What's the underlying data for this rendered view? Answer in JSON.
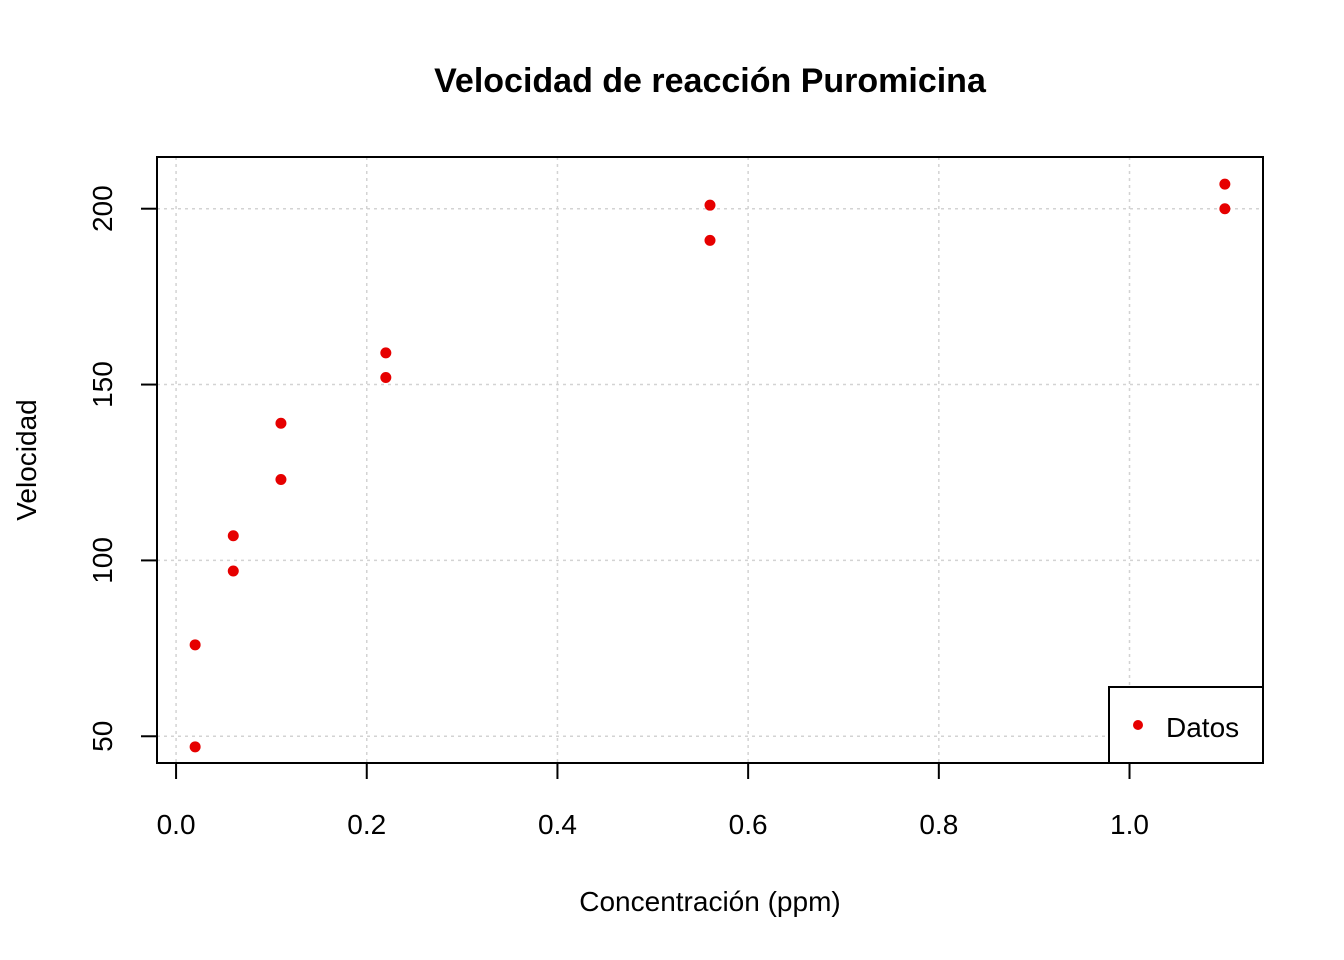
{
  "chart_data": {
    "type": "scatter",
    "title": "Velocidad de reacción Puromicina",
    "xlabel": "Concentración (ppm)",
    "ylabel": "Velocidad",
    "xlim": [
      -0.02,
      1.14
    ],
    "ylim": [
      42.4,
      214.7
    ],
    "xticks": [
      0.0,
      0.2,
      0.4,
      0.6,
      0.8,
      1.0
    ],
    "xtick_labels": [
      "0.0",
      "0.2",
      "0.4",
      "0.6",
      "0.8",
      "1.0"
    ],
    "yticks": [
      50,
      100,
      150,
      200
    ],
    "ytick_labels": [
      "50",
      "100",
      "150",
      "200"
    ],
    "grid": true,
    "legend_position": "bottom-right",
    "series": [
      {
        "name": "Datos",
        "color": "#e60000",
        "x": [
          0.02,
          0.02,
          0.06,
          0.06,
          0.11,
          0.11,
          0.22,
          0.22,
          0.56,
          0.56,
          1.1,
          1.1
        ],
        "y": [
          76,
          47,
          97,
          107,
          123,
          139,
          159,
          152,
          191,
          201,
          207,
          200
        ]
      }
    ]
  }
}
